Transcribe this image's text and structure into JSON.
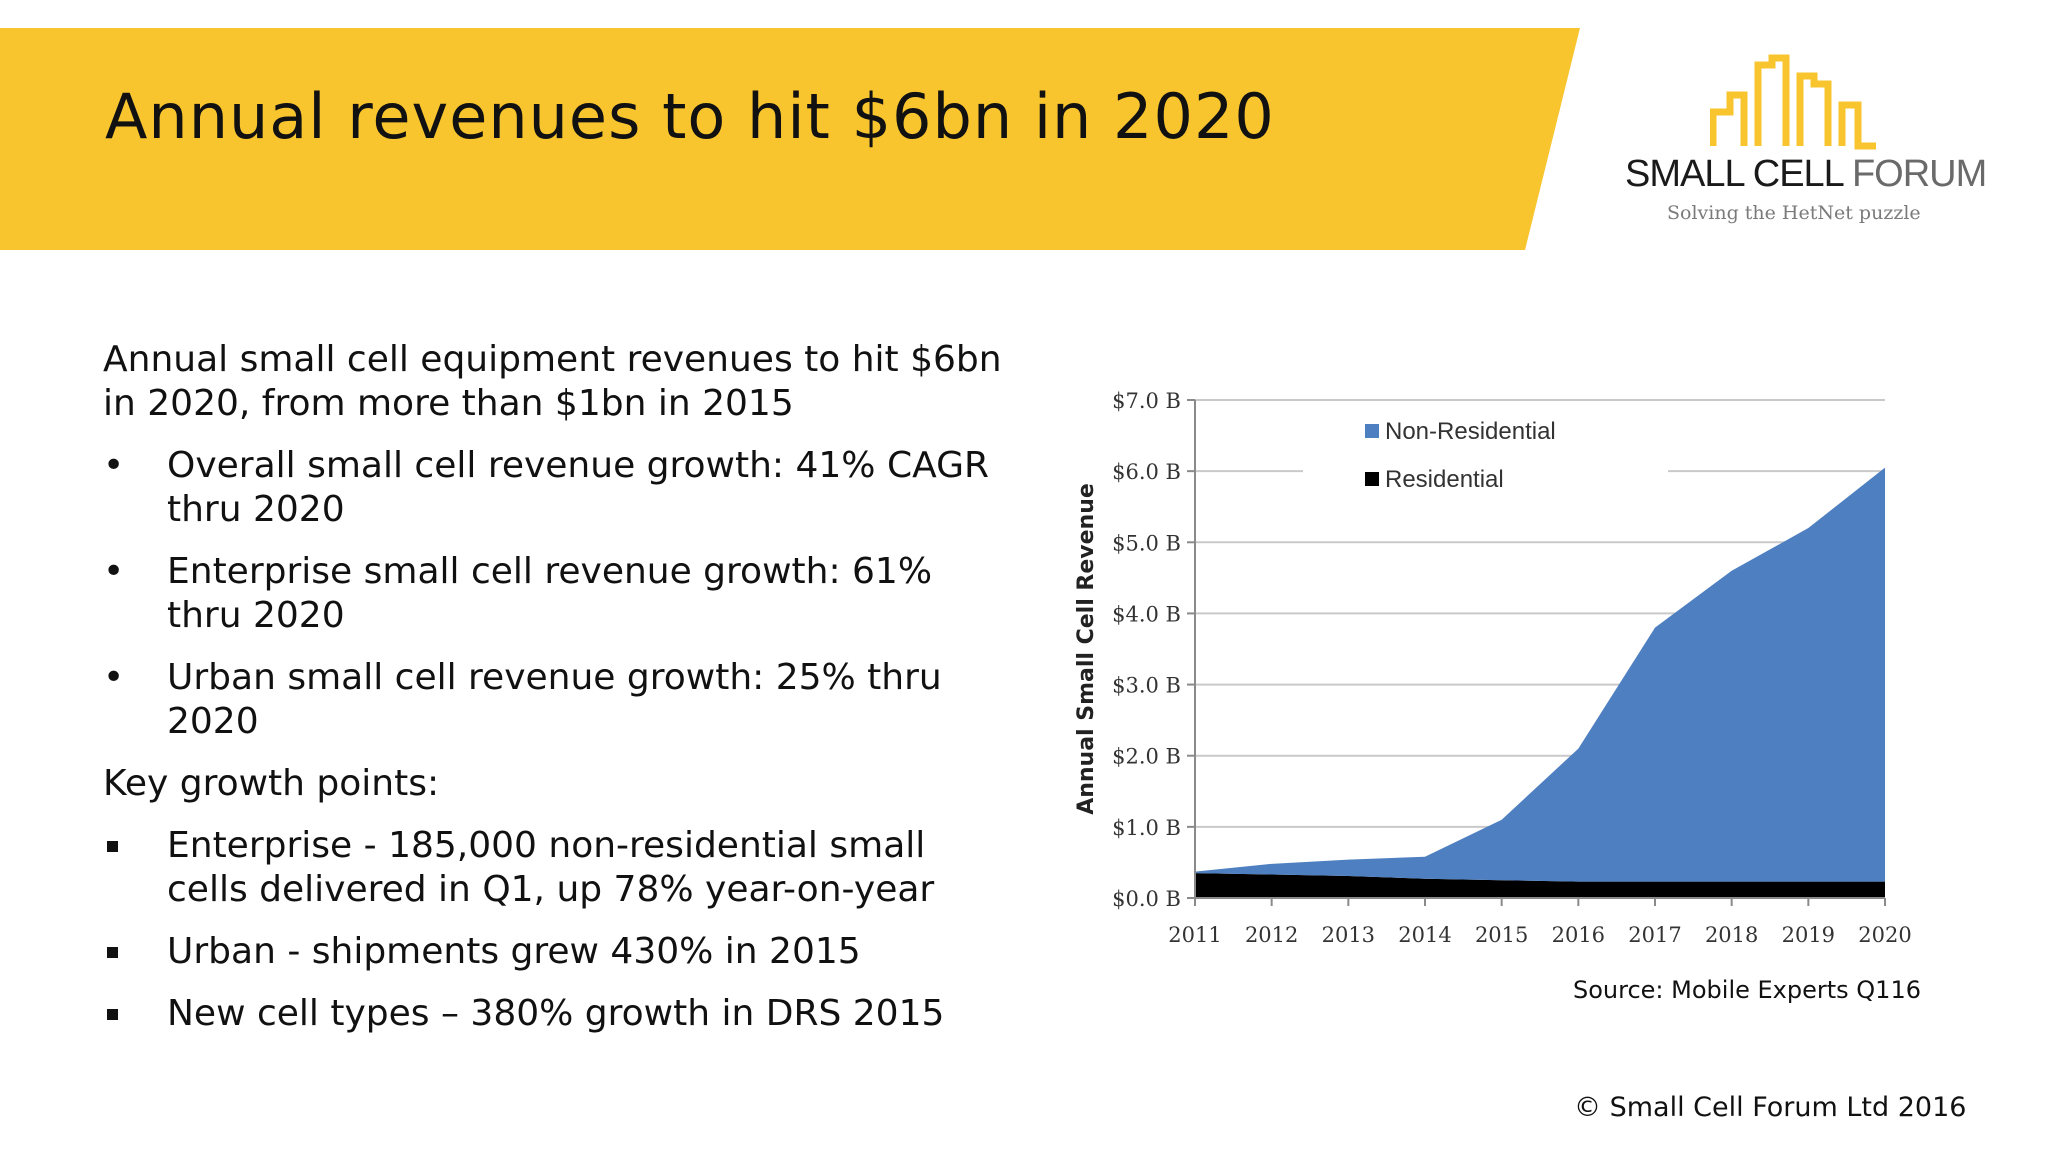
{
  "slide": {
    "title": "Annual revenues to hit $6bn in 2020",
    "logo": {
      "name_part1": "SMALL CELL",
      "name_part2": "FORUM",
      "tagline": "Solving the HetNet puzzle",
      "accent_color": "#f9c52f"
    },
    "intro": "Annual small cell equipment revenues to hit $6bn in 2020, from more than $1bn in 2015",
    "bullets": [
      "Overall small cell revenue growth:   41% CAGR thru 2020",
      "Enterprise small cell revenue growth:  61% thru 2020",
      "Urban small cell revenue growth:   25% thru 2020"
    ],
    "key_heading": "Key growth points:",
    "key_points": [
      "Enterprise - 185,000 non-residential small cells delivered in Q1, up 78% year-on-year",
      "Urban - shipments grew 430% in 2015",
      "New cell types – 380% growth in DRS 2015"
    ],
    "source": "Source: Mobile Experts Q116",
    "copyright": "© Small Cell Forum Ltd 2016",
    "banner_color": "#f9c52f"
  },
  "chart_data": {
    "type": "area",
    "stacked": true,
    "title": "",
    "xlabel": "",
    "ylabel": "Annual Small Cell Revenue",
    "x": [
      "2011",
      "2012",
      "2013",
      "2014",
      "2015",
      "2016",
      "2017",
      "2018",
      "2019",
      "2020"
    ],
    "y_ticks": [
      "$0.0 B",
      "$1.0 B",
      "$2.0 B",
      "$3.0 B",
      "$4.0 B",
      "$5.0 B",
      "$6.0 B",
      "$7.0 B"
    ],
    "ylim": [
      0,
      7
    ],
    "grid": true,
    "legend_position": "top-left",
    "series": [
      {
        "name": "Residential",
        "color": "#000000",
        "values": [
          0.35,
          0.33,
          0.31,
          0.27,
          0.25,
          0.23,
          0.23,
          0.23,
          0.23,
          0.23
        ]
      },
      {
        "name": "Non-Residential",
        "color": "#4e7fc1",
        "values": [
          0.02,
          0.15,
          0.23,
          0.31,
          0.85,
          1.87,
          3.57,
          4.37,
          4.97,
          5.82
        ]
      }
    ]
  }
}
